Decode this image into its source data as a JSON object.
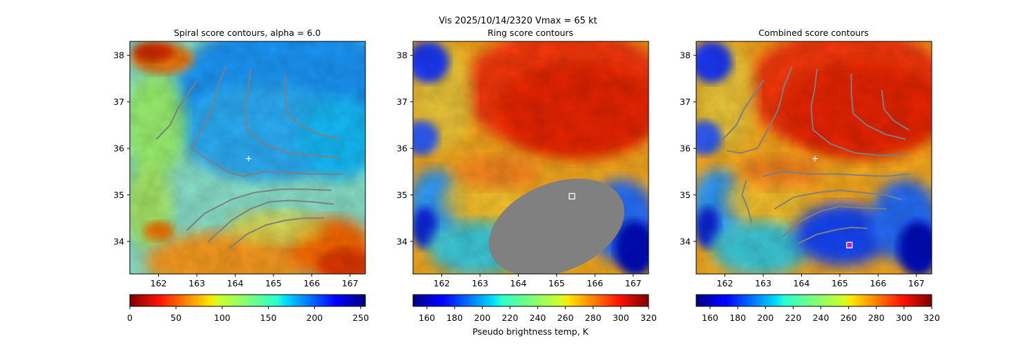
{
  "figure": {
    "suptitle": "Vis  2025/10/14/2320    Vmax = 65 kt"
  },
  "chart_data": [
    {
      "type": "heatmap",
      "title": "Spiral score contours, alpha =  6.0",
      "xticks": [
        "162",
        "163",
        "164",
        "165",
        "166",
        "167"
      ],
      "yticks": [
        "34",
        "35",
        "36",
        "37",
        "38"
      ],
      "xlim": [
        161.25,
        167.4
      ],
      "ylim": [
        33.3,
        38.3
      ],
      "colormap": "jet_r",
      "colorbar": {
        "ticks": [
          "0",
          "50",
          "100",
          "150",
          "200",
          "250"
        ],
        "range": [
          0,
          255
        ],
        "label": ""
      },
      "center_marker": {
        "lon": 164.35,
        "lat": 35.78,
        "symbol": "+"
      },
      "contours": [
        [
          [
            161.95,
            36.2
          ],
          [
            162.3,
            36.5
          ],
          [
            162.5,
            36.85
          ],
          [
            162.75,
            37.15
          ],
          [
            163.0,
            37.45
          ]
        ],
        [
          [
            163.75,
            37.75
          ],
          [
            163.55,
            37.35
          ],
          [
            163.4,
            36.85
          ],
          [
            163.15,
            36.45
          ],
          [
            162.85,
            36.0
          ],
          [
            163.3,
            35.75
          ],
          [
            163.8,
            35.5
          ],
          [
            164.2,
            35.4
          ]
        ],
        [
          [
            164.2,
            35.4
          ],
          [
            164.8,
            35.5
          ],
          [
            165.4,
            35.48
          ],
          [
            166.0,
            35.45
          ],
          [
            166.8,
            35.45
          ]
        ],
        [
          [
            164.4,
            37.7
          ],
          [
            164.35,
            37.3
          ],
          [
            164.25,
            36.9
          ],
          [
            164.3,
            36.4
          ],
          [
            164.75,
            36.1
          ],
          [
            165.4,
            35.9
          ],
          [
            166.0,
            35.85
          ],
          [
            166.7,
            35.8
          ]
        ],
        [
          [
            165.3,
            37.6
          ],
          [
            165.3,
            37.2
          ],
          [
            165.35,
            36.75
          ],
          [
            165.7,
            36.5
          ],
          [
            166.2,
            36.3
          ],
          [
            166.7,
            36.2
          ]
        ],
        [
          [
            162.75,
            34.25
          ],
          [
            163.2,
            34.6
          ],
          [
            163.9,
            34.9
          ],
          [
            164.5,
            35.05
          ],
          [
            165.2,
            35.12
          ],
          [
            165.8,
            35.12
          ],
          [
            166.5,
            35.1
          ]
        ],
        [
          [
            163.3,
            34.0
          ],
          [
            163.9,
            34.45
          ],
          [
            164.4,
            34.7
          ],
          [
            164.9,
            34.85
          ],
          [
            165.4,
            34.88
          ],
          [
            166.0,
            34.85
          ],
          [
            166.55,
            34.8
          ]
        ],
        [
          [
            163.85,
            33.85
          ],
          [
            164.3,
            34.15
          ],
          [
            164.8,
            34.35
          ],
          [
            165.3,
            34.45
          ],
          [
            165.8,
            34.5
          ],
          [
            166.3,
            34.5
          ]
        ]
      ]
    },
    {
      "type": "heatmap",
      "title": "Ring score contours",
      "xticks": [
        "162",
        "163",
        "164",
        "165",
        "166",
        "167"
      ],
      "yticks": [
        "34",
        "35",
        "36",
        "37",
        "38"
      ],
      "xlim": [
        161.25,
        167.4
      ],
      "ylim": [
        33.3,
        38.3
      ],
      "colormap": "jet",
      "colorbar": {
        "ticks": [
          "160",
          "180",
          "200",
          "220",
          "240",
          "260",
          "280",
          "300",
          "320"
        ],
        "range": [
          150,
          320
        ],
        "label": "Pseudo brightness temp, K"
      },
      "ring_marker": {
        "lon": 165.4,
        "lat": 34.97,
        "symbol": "square"
      },
      "masked_region": {
        "center_lon": 165.0,
        "center_lat": 34.3,
        "semi_major_lon": 1.85,
        "semi_minor_lat": 0.95,
        "rotation_deg": -22
      }
    },
    {
      "type": "heatmap",
      "title": "Combined score contours",
      "xticks": [
        "162",
        "163",
        "164",
        "165",
        "166",
        "167"
      ],
      "yticks": [
        "34",
        "35",
        "36",
        "37",
        "38"
      ],
      "xlim": [
        161.25,
        167.4
      ],
      "ylim": [
        33.3,
        38.3
      ],
      "colormap": "jet",
      "colorbar": {
        "ticks": [
          "160",
          "180",
          "200",
          "220",
          "240",
          "260",
          "280",
          "300",
          "320"
        ],
        "range": [
          150,
          320
        ],
        "label": ""
      },
      "center_marker": {
        "lon": 164.35,
        "lat": 35.78,
        "symbol": "+"
      },
      "combined_marker": {
        "lon": 165.25,
        "lat": 33.92,
        "symbol": "square"
      },
      "contours": [
        [
          [
            161.95,
            36.2
          ],
          [
            162.3,
            36.5
          ],
          [
            162.5,
            36.85
          ],
          [
            162.75,
            37.15
          ],
          [
            163.0,
            37.45
          ]
        ],
        [
          [
            163.75,
            37.75
          ],
          [
            163.55,
            37.35
          ],
          [
            163.4,
            36.85
          ],
          [
            163.15,
            36.45
          ],
          [
            162.85,
            36.0
          ],
          [
            162.4,
            35.9
          ],
          [
            162.05,
            35.95
          ]
        ],
        [
          [
            163.0,
            35.4
          ],
          [
            163.5,
            35.5
          ],
          [
            164.2,
            35.45
          ],
          [
            164.9,
            35.45
          ],
          [
            165.6,
            35.42
          ],
          [
            166.2,
            35.4
          ],
          [
            166.8,
            35.45
          ]
        ],
        [
          [
            164.4,
            37.7
          ],
          [
            164.35,
            37.3
          ],
          [
            164.25,
            36.9
          ],
          [
            164.3,
            36.4
          ],
          [
            164.75,
            36.1
          ],
          [
            165.4,
            35.9
          ],
          [
            166.0,
            35.85
          ],
          [
            166.7,
            35.85
          ]
        ],
        [
          [
            165.3,
            37.6
          ],
          [
            165.3,
            37.2
          ],
          [
            165.35,
            36.75
          ],
          [
            165.7,
            36.5
          ],
          [
            166.2,
            36.3
          ],
          [
            166.7,
            36.2
          ]
        ],
        [
          [
            166.1,
            37.25
          ],
          [
            166.15,
            36.85
          ],
          [
            166.4,
            36.6
          ],
          [
            166.8,
            36.4
          ]
        ],
        [
          [
            162.55,
            35.3
          ],
          [
            162.45,
            35.0
          ],
          [
            162.6,
            34.7
          ],
          [
            162.7,
            34.4
          ]
        ],
        [
          [
            163.3,
            34.7
          ],
          [
            163.8,
            34.95
          ],
          [
            164.4,
            35.05
          ],
          [
            165.0,
            35.1
          ],
          [
            165.6,
            35.05
          ],
          [
            166.2,
            35.0
          ],
          [
            166.6,
            34.9
          ]
        ],
        [
          [
            163.5,
            34.1
          ],
          [
            164.0,
            34.45
          ],
          [
            164.5,
            34.65
          ],
          [
            165.0,
            34.75
          ],
          [
            165.6,
            34.72
          ],
          [
            166.2,
            34.7
          ]
        ],
        [
          [
            163.9,
            33.95
          ],
          [
            164.4,
            34.15
          ],
          [
            164.9,
            34.25
          ],
          [
            165.3,
            34.3
          ],
          [
            165.7,
            34.28
          ]
        ]
      ]
    }
  ]
}
